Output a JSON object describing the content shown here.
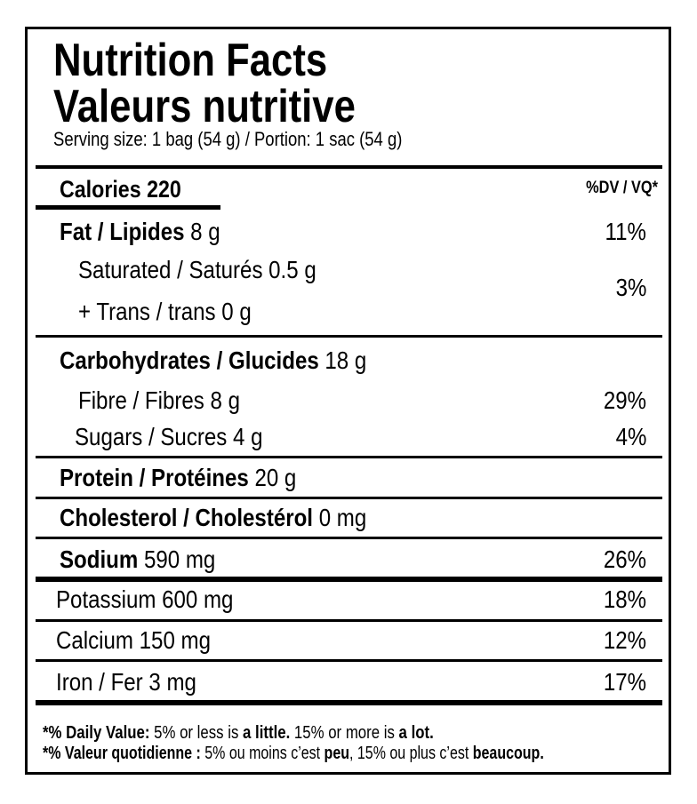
{
  "header": {
    "title_en": "Nutrition Facts",
    "title_fr": "Valeurs nutritive",
    "serving": "Serving size: 1 bag (54 g) / Portion: 1 sac (54 g)"
  },
  "calories": {
    "label": "Calories 220",
    "dv_heading": "%DV / VQ*"
  },
  "fat": {
    "name": "Fat / Lipides",
    "amount": "8 g",
    "dv": "11%"
  },
  "saturated": {
    "text": "Saturated / Saturés 0.5 g"
  },
  "trans": {
    "text": "+ Trans / trans 0 g"
  },
  "saturated_trans_dv": "3%",
  "carbohydrates": {
    "name": "Carbohydrates / Glucides",
    "amount": "18 g"
  },
  "fibre": {
    "text": "Fibre / Fibres 8 g",
    "dv": "29%"
  },
  "sugars": {
    "text": "Sugars / Sucres 4 g",
    "dv": "4%"
  },
  "protein": {
    "name": "Protein / Protéines",
    "amount": "20 g"
  },
  "cholesterol": {
    "name": "Cholesterol / Cholestérol",
    "amount": "0 mg"
  },
  "sodium": {
    "name": "Sodium",
    "amount": "590 mg",
    "dv": "26%"
  },
  "potassium": {
    "text": "Potassium 600 mg",
    "dv": "18%"
  },
  "calcium": {
    "text": "Calcium 150 mg",
    "dv": "12%"
  },
  "iron": {
    "text": "Iron / Fer 3 mg",
    "dv": "17%"
  },
  "footnote": [
    [
      {
        "b": "*% Daily Value:"
      },
      {
        "t": " 5% or less is "
      },
      {
        "b": "a little."
      },
      {
        "t": " 15% or more is "
      },
      {
        "b": "a lot."
      }
    ],
    [
      {
        "b": "*% Valeur quotidienne :"
      },
      {
        "t": " 5% ou moins c’est "
      },
      {
        "b": "peu"
      },
      {
        "t": ", 15% ou plus c’est "
      },
      {
        "b": "beaucoup."
      }
    ]
  ]
}
